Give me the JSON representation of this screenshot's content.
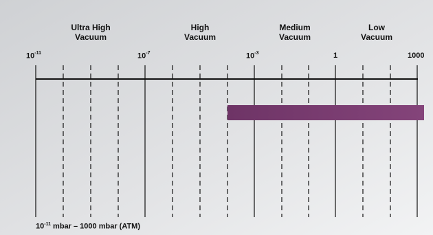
{
  "scale": {
    "ticks": [
      {
        "base": "10",
        "exp": "-11"
      },
      {
        "base": "10",
        "exp": "-7"
      },
      {
        "base": "10",
        "exp": "-3"
      },
      {
        "base": "1",
        "exp": ""
      },
      {
        "base": "1000",
        "exp": ""
      }
    ],
    "ranges": [
      {
        "line1": "Ultra High",
        "line2": "Vacuum"
      },
      {
        "line1": "High",
        "line2": "Vacuum"
      },
      {
        "line1": "Medium",
        "line2": "Vacuum"
      },
      {
        "line1": "Low",
        "line2": "Vacuum"
      }
    ]
  },
  "bar": {
    "color": "#7b3d72",
    "from_mbar": "5×10^-4",
    "to_mbar": "> 1000"
  },
  "footer": {
    "prefix": "10",
    "exp": "-11",
    "rest": " mbar – 1000 mbar (ATM)"
  },
  "colors": {
    "background": "#e6e7e9",
    "panel": "#d4d6d9",
    "lines": "#111111"
  }
}
